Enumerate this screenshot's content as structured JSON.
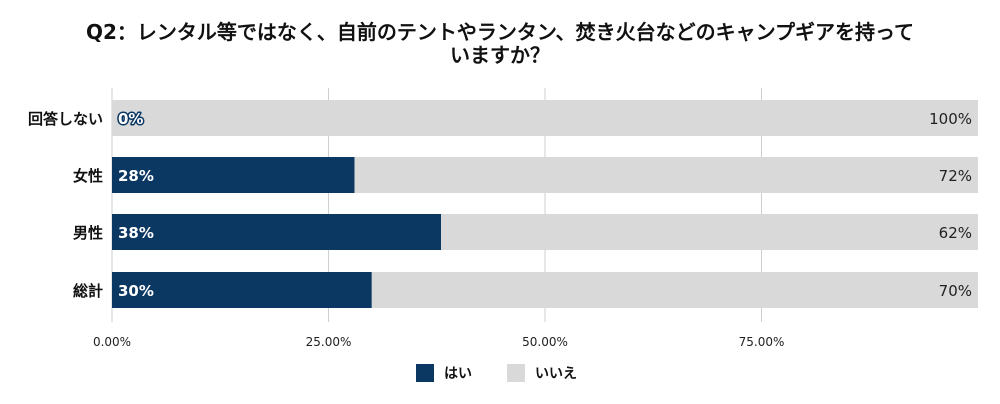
{
  "chart_data": {
    "type": "bar",
    "orientation": "horizontal",
    "stacked": true,
    "percent": true,
    "title_lines": [
      "Q2：レンタル等ではなく、自前のテントやランタン、焚き火台などのキャンプギアを持って",
      "いますか？"
    ],
    "categories": [
      "回答しない",
      "女性",
      "男性",
      "総計"
    ],
    "series": [
      {
        "name": "はい",
        "values": [
          0,
          28,
          38,
          30
        ],
        "labels": [
          "0%",
          "28%",
          "38%",
          "30%"
        ]
      },
      {
        "name": "いいえ",
        "values": [
          100,
          72,
          62,
          70
        ],
        "labels": [
          "100%",
          "72%",
          "62%",
          "70%"
        ]
      }
    ],
    "xlim": [
      0,
      100
    ],
    "xticks": [
      0,
      25,
      50,
      75
    ],
    "xtick_labels": [
      "0.00%",
      "25.00%",
      "50.00%",
      "75.00%"
    ],
    "grid": true,
    "legend_position": "bottom",
    "colors": {
      "はい": "#0b3763",
      "いいえ": "#d9d9d9",
      "grid": "#cfcfcf"
    }
  }
}
